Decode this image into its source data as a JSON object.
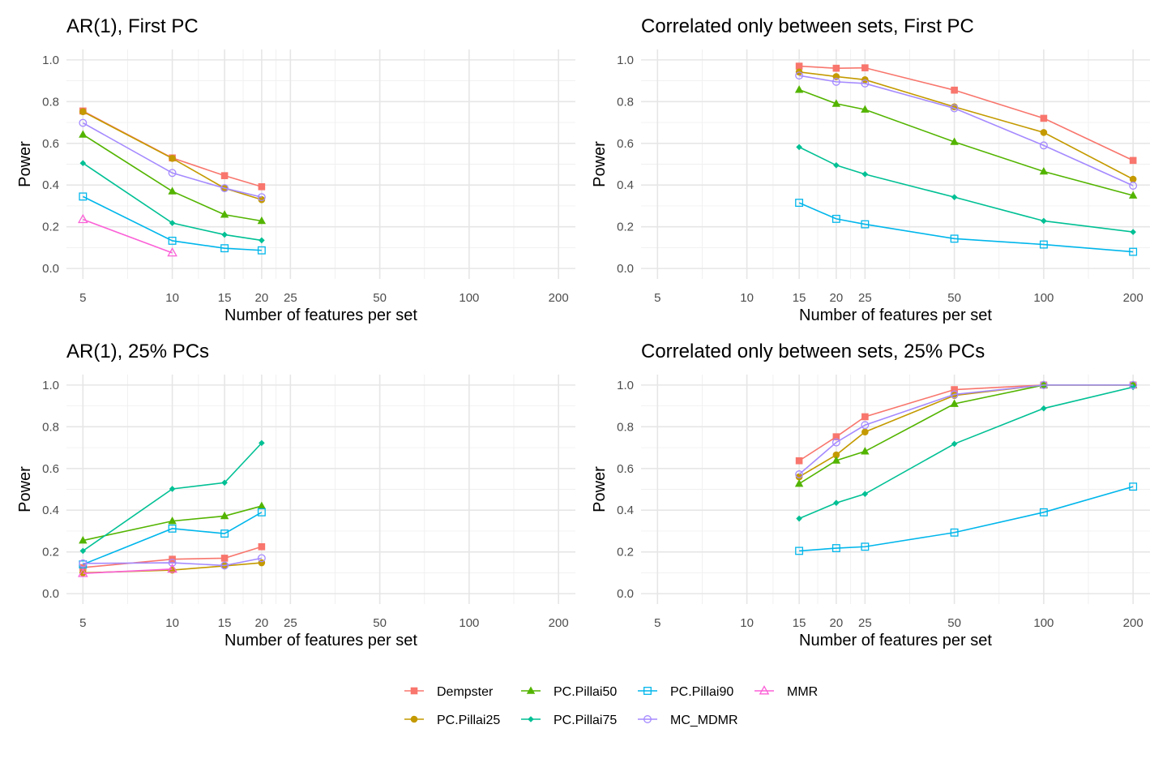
{
  "chart_data": [
    {
      "type": "line",
      "title": "AR(1), First PC",
      "xlabel": "Number of features per set",
      "ylabel": "Power",
      "x_scale": "log",
      "x_ticks": [
        5,
        10,
        15,
        20,
        25,
        50,
        100,
        200
      ],
      "y_ticks": [
        0.0,
        0.2,
        0.4,
        0.6,
        0.8,
        1.0
      ],
      "y_tick_labels": [
        "0.0",
        "0.2",
        "0.4",
        "0.6",
        "0.8",
        "1.0"
      ],
      "ylim": [
        0,
        1
      ],
      "series": [
        {
          "name": "Dempster",
          "x": [
            5,
            10,
            15,
            20
          ],
          "y": [
            0.755,
            0.53,
            0.445,
            0.392
          ]
        },
        {
          "name": "PC.Pillai25",
          "x": [
            5,
            10,
            15,
            20
          ],
          "y": [
            0.752,
            0.528,
            0.385,
            0.33
          ]
        },
        {
          "name": "PC.Pillai50",
          "x": [
            5,
            10,
            15,
            20
          ],
          "y": [
            0.642,
            0.37,
            0.258,
            0.228
          ]
        },
        {
          "name": "PC.Pillai75",
          "x": [
            5,
            10,
            15,
            20
          ],
          "y": [
            0.505,
            0.218,
            0.162,
            0.135
          ]
        },
        {
          "name": "PC.Pillai90",
          "x": [
            5,
            10,
            15,
            20
          ],
          "y": [
            0.345,
            0.133,
            0.097,
            0.087
          ]
        },
        {
          "name": "MC_MDMR",
          "x": [
            5,
            10,
            15,
            20
          ],
          "y": [
            0.698,
            0.458,
            0.385,
            0.342
          ]
        },
        {
          "name": "MMR",
          "x": [
            5,
            10
          ],
          "y": [
            0.235,
            0.075
          ]
        }
      ]
    },
    {
      "type": "line",
      "title": "Correlated only between sets, First PC",
      "xlabel": "Number of features per set",
      "ylabel": "Power",
      "x_scale": "log",
      "x_ticks": [
        5,
        10,
        15,
        20,
        25,
        50,
        100,
        200
      ],
      "y_ticks": [
        0.0,
        0.2,
        0.4,
        0.6,
        0.8,
        1.0
      ],
      "y_tick_labels": [
        "0.0",
        "0.2",
        "0.4",
        "0.6",
        "0.8",
        "1.0"
      ],
      "ylim": [
        0,
        1
      ],
      "series": [
        {
          "name": "Dempster",
          "x": [
            15,
            20,
            25,
            50,
            100,
            200
          ],
          "y": [
            0.97,
            0.96,
            0.962,
            0.855,
            0.72,
            0.518
          ]
        },
        {
          "name": "PC.Pillai25",
          "x": [
            15,
            20,
            25,
            50,
            100,
            200
          ],
          "y": [
            0.942,
            0.92,
            0.905,
            0.775,
            0.652,
            0.428
          ]
        },
        {
          "name": "PC.Pillai50",
          "x": [
            15,
            20,
            25,
            50,
            100,
            200
          ],
          "y": [
            0.857,
            0.79,
            0.762,
            0.607,
            0.465,
            0.35
          ]
        },
        {
          "name": "PC.Pillai75",
          "x": [
            15,
            20,
            25,
            50,
            100,
            200
          ],
          "y": [
            0.582,
            0.495,
            0.452,
            0.342,
            0.228,
            0.175
          ]
        },
        {
          "name": "PC.Pillai90",
          "x": [
            15,
            20,
            25,
            50,
            100,
            200
          ],
          "y": [
            0.315,
            0.238,
            0.212,
            0.143,
            0.115,
            0.08
          ]
        },
        {
          "name": "MC_MDMR",
          "x": [
            15,
            20,
            25,
            50,
            100,
            200
          ],
          "y": [
            0.925,
            0.895,
            0.887,
            0.768,
            0.59,
            0.397
          ]
        }
      ]
    },
    {
      "type": "line",
      "title": "AR(1), 25% PCs",
      "xlabel": "Number of features per set",
      "ylabel": "Power",
      "x_scale": "log",
      "x_ticks": [
        5,
        10,
        15,
        20,
        25,
        50,
        100,
        200
      ],
      "y_ticks": [
        0.0,
        0.2,
        0.4,
        0.6,
        0.8,
        1.0
      ],
      "y_tick_labels": [
        "0.0",
        "0.2",
        "0.4",
        "0.6",
        "0.8",
        "1.0"
      ],
      "ylim": [
        0,
        1
      ],
      "series": [
        {
          "name": "Dempster",
          "x": [
            5,
            10,
            15,
            20
          ],
          "y": [
            0.125,
            0.165,
            0.17,
            0.225
          ]
        },
        {
          "name": "PC.Pillai25",
          "x": [
            5,
            10,
            15,
            20
          ],
          "y": [
            0.1,
            0.113,
            0.133,
            0.148
          ]
        },
        {
          "name": "PC.Pillai50",
          "x": [
            5,
            10,
            15,
            20
          ],
          "y": [
            0.255,
            0.348,
            0.372,
            0.42
          ]
        },
        {
          "name": "PC.Pillai75",
          "x": [
            5,
            10,
            15,
            20
          ],
          "y": [
            0.205,
            0.502,
            0.532,
            0.722
          ]
        },
        {
          "name": "PC.Pillai90",
          "x": [
            5,
            10,
            15,
            20
          ],
          "y": [
            0.14,
            0.312,
            0.288,
            0.39
          ]
        },
        {
          "name": "MC_MDMR",
          "x": [
            5,
            10,
            15,
            20
          ],
          "y": [
            0.145,
            0.148,
            0.135,
            0.17
          ]
        },
        {
          "name": "MMR",
          "x": [
            5,
            10
          ],
          "y": [
            0.097,
            0.118
          ]
        }
      ]
    },
    {
      "type": "line",
      "title": "Correlated only between sets, 25% PCs",
      "xlabel": "Number of features per set",
      "ylabel": "Power",
      "x_scale": "log",
      "x_ticks": [
        5,
        10,
        15,
        20,
        25,
        50,
        100,
        200
      ],
      "y_ticks": [
        0.0,
        0.2,
        0.4,
        0.6,
        0.8,
        1.0
      ],
      "y_tick_labels": [
        "0.0",
        "0.2",
        "0.4",
        "0.6",
        "0.8",
        "1.0"
      ],
      "ylim": [
        0,
        1
      ],
      "series": [
        {
          "name": "Dempster",
          "x": [
            15,
            20,
            25,
            50,
            100,
            200
          ],
          "y": [
            0.637,
            0.752,
            0.848,
            0.978,
            1.0,
            1.0
          ]
        },
        {
          "name": "PC.Pillai25",
          "x": [
            15,
            20,
            25,
            50,
            100,
            200
          ],
          "y": [
            0.56,
            0.665,
            0.775,
            0.95,
            1.0,
            1.0
          ]
        },
        {
          "name": "PC.Pillai50",
          "x": [
            15,
            20,
            25,
            50,
            100,
            200
          ],
          "y": [
            0.527,
            0.638,
            0.682,
            0.91,
            1.0,
            1.0
          ]
        },
        {
          "name": "PC.Pillai75",
          "x": [
            15,
            20,
            25,
            50,
            100,
            200
          ],
          "y": [
            0.36,
            0.435,
            0.478,
            0.718,
            0.888,
            0.99
          ]
        },
        {
          "name": "PC.Pillai90",
          "x": [
            15,
            20,
            25,
            50,
            100,
            200
          ],
          "y": [
            0.205,
            0.218,
            0.225,
            0.293,
            0.39,
            0.513
          ]
        },
        {
          "name": "MC_MDMR",
          "x": [
            15,
            20,
            25,
            50,
            100,
            200
          ],
          "y": [
            0.572,
            0.725,
            0.808,
            0.955,
            1.0,
            1.0
          ]
        }
      ]
    }
  ],
  "legend": {
    "placement": "bottom",
    "items": [
      {
        "name": "Dempster",
        "color": "#F8766D",
        "shape": "square"
      },
      {
        "name": "PC.Pillai50",
        "color": "#53B400",
        "shape": "triangle"
      },
      {
        "name": "PC.Pillai90",
        "color": "#00B6EB",
        "shape": "open-square"
      },
      {
        "name": "MMR",
        "color": "#FB61D7",
        "shape": "open-triangle"
      },
      {
        "name": "PC.Pillai25",
        "color": "#C49A00",
        "shape": "circle"
      },
      {
        "name": "PC.Pillai75",
        "color": "#00C094",
        "shape": "diamond"
      },
      {
        "name": "MC_MDMR",
        "color": "#A58AFF",
        "shape": "open-circle"
      }
    ]
  },
  "series_styles": {
    "Dempster": {
      "color": "#F8766D",
      "shape": "square"
    },
    "PC.Pillai25": {
      "color": "#C49A00",
      "shape": "circle"
    },
    "PC.Pillai50": {
      "color": "#53B400",
      "shape": "triangle"
    },
    "PC.Pillai75": {
      "color": "#00C094",
      "shape": "diamond"
    },
    "PC.Pillai90": {
      "color": "#00B6EB",
      "shape": "open-square"
    },
    "MC_MDMR": {
      "color": "#A58AFF",
      "shape": "open-circle"
    },
    "MMR": {
      "color": "#FB61D7",
      "shape": "open-triangle"
    }
  },
  "grid": true
}
